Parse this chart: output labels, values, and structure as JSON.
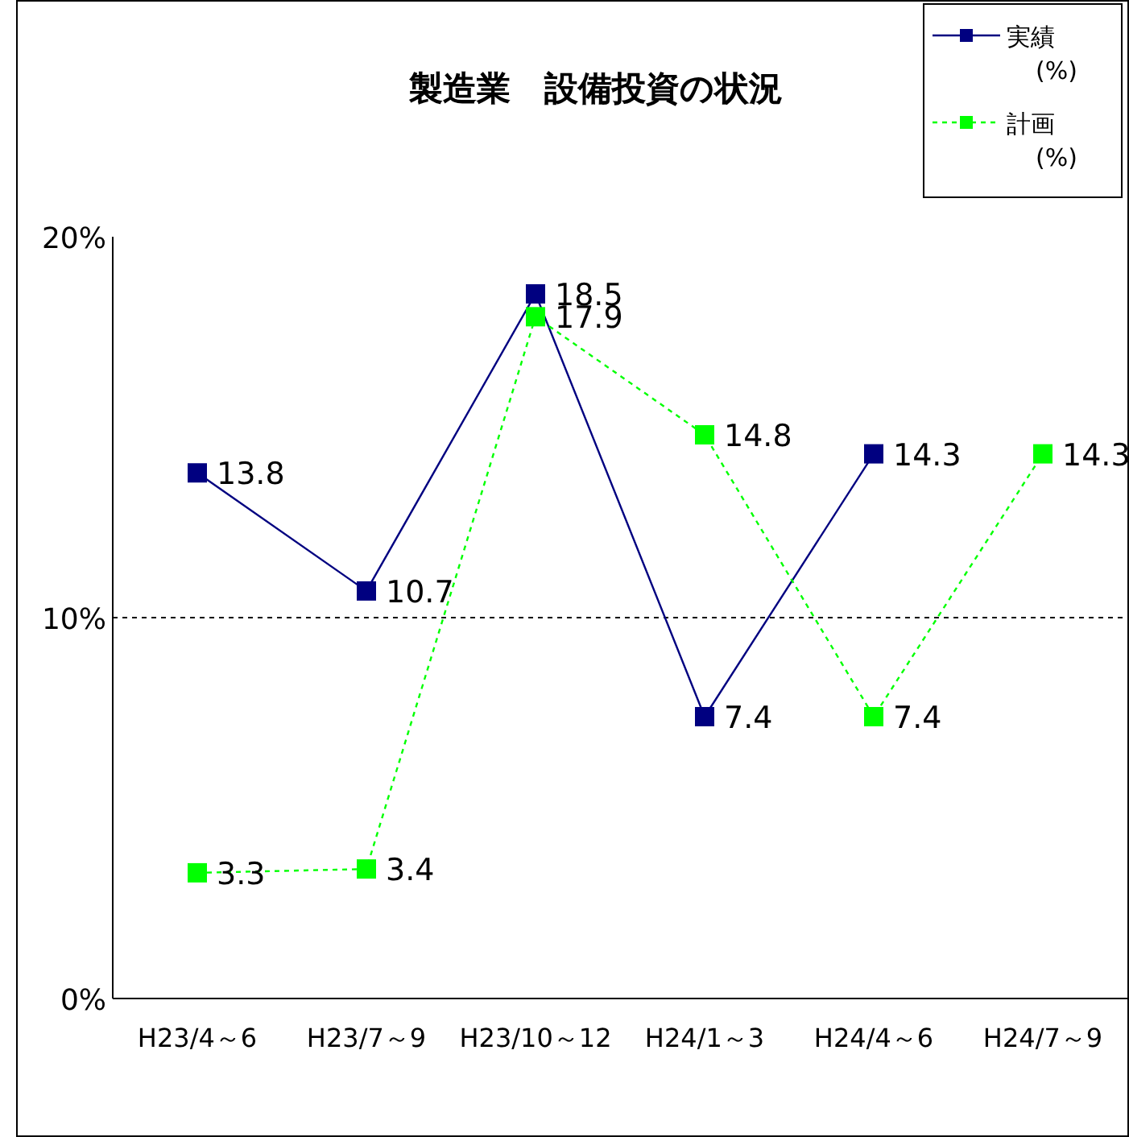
{
  "chart_data": {
    "type": "line",
    "title": "製造業　設備投資の状況",
    "categories": [
      "H23/4～6",
      "H23/7～9",
      "H23/10～12",
      "H24/1～3",
      "H24/4～6",
      "H24/7～9"
    ],
    "series": [
      {
        "name": "実績(%)",
        "color": "#000080",
        "line_style": "solid",
        "values": [
          13.8,
          10.7,
          18.5,
          7.4,
          14.3,
          null
        ]
      },
      {
        "name": "計画(%)",
        "color": "#00ff00",
        "line_style": "dashed",
        "values": [
          3.3,
          3.4,
          17.9,
          14.8,
          7.4,
          14.3
        ]
      }
    ],
    "ylim": [
      0,
      20
    ],
    "yticks": [
      {
        "value": 0,
        "label": "0%"
      },
      {
        "value": 10,
        "label": "10%"
      },
      {
        "value": 20,
        "label": "20%"
      }
    ],
    "ref_lines": [
      {
        "axis": "y",
        "value": 10,
        "color": "#000000",
        "line_style": "dashed"
      }
    ],
    "marker": "square",
    "data_labels": true,
    "legend": "top right",
    "grid": false
  }
}
